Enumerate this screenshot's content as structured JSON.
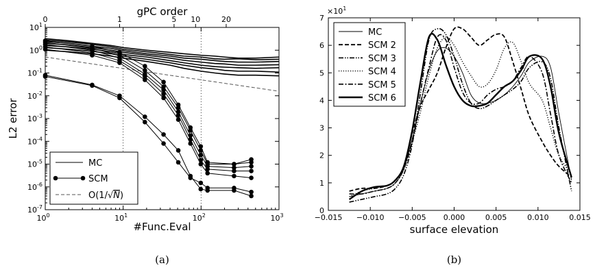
{
  "chart_data": [
    {
      "type": "line",
      "caption": "(a)",
      "xlabel": "#Func.Eval",
      "ylabel": "L2 error",
      "top_xlabel": "gPC order",
      "xscale": "log",
      "yscale": "log",
      "xlim": [
        1,
        1000
      ],
      "ylim": [
        1e-07,
        10
      ],
      "grid": "dotted verticals at 10 and 100",
      "xticks": [
        {
          "v": 1,
          "b": "10",
          "e": "0"
        },
        {
          "v": 10,
          "b": "10",
          "e": "1"
        },
        {
          "v": 100,
          "b": "10",
          "e": "2"
        },
        {
          "v": 1000,
          "b": "10",
          "e": "3"
        }
      ],
      "yticks": [
        {
          "v": 1e-07,
          "b": "10",
          "e": "-7"
        },
        {
          "v": 1e-06,
          "b": "10",
          "e": "-6"
        },
        {
          "v": 1e-05,
          "b": "10",
          "e": "-5"
        },
        {
          "v": 0.0001,
          "b": "10",
          "e": "-4"
        },
        {
          "v": 0.001,
          "b": "10",
          "e": "-3"
        },
        {
          "v": 0.01,
          "b": "10",
          "e": "-2"
        },
        {
          "v": 0.1,
          "b": "10",
          "e": "-1"
        },
        {
          "v": 1,
          "b": "10",
          "e": "0"
        },
        {
          "v": 10,
          "b": "10",
          "e": "1"
        }
      ],
      "top_ticks": [
        {
          "v": 1,
          "label": "0"
        },
        {
          "v": 9,
          "label": "1"
        },
        {
          "v": 45,
          "label": "5"
        },
        {
          "v": 85,
          "label": "10"
        },
        {
          "v": 210,
          "label": "20"
        }
      ],
      "legend": {
        "position": "lower-left",
        "items": [
          {
            "label": "MC",
            "style": "solid"
          },
          {
            "label": "SCM",
            "style": "solid-marker"
          },
          {
            "label_pre": "O(1/",
            "label_sqrt": "√",
            "label_n": "N",
            "label_post": ")",
            "style": "dashed"
          }
        ]
      },
      "x_scm": [
        1,
        4,
        9,
        19,
        33,
        51,
        73,
        99,
        121,
        265,
        441
      ],
      "scm_series": [
        [
          2.6,
          1.5,
          0.8,
          0.2,
          0.04,
          0.004,
          0.0004,
          6e-05,
          1.2e-05,
          1e-05,
          1.6e-05
        ],
        [
          2.2,
          1.2,
          0.6,
          0.13,
          0.025,
          0.003,
          0.0003,
          4e-05,
          1e-05,
          1e-05,
          1.2e-05
        ],
        [
          1.8,
          1.0,
          0.45,
          0.09,
          0.018,
          0.002,
          0.00018,
          2.5e-05,
          8e-06,
          7e-06,
          8e-06
        ],
        [
          1.4,
          0.75,
          0.35,
          0.07,
          0.012,
          0.0014,
          0.00012,
          1.5e-05,
          6e-06,
          5e-06,
          5e-06
        ],
        [
          1.1,
          0.6,
          0.28,
          0.05,
          0.008,
          0.0009,
          8e-05,
          1e-05,
          4e-06,
          3e-06,
          2.5e-06
        ],
        [
          0.08,
          0.03,
          0.01,
          0.0012,
          0.0002,
          4e-05,
          3e-06,
          8e-07,
          7e-07,
          7e-07,
          4e-07
        ],
        [
          0.07,
          0.028,
          0.008,
          0.0007,
          8e-05,
          1.2e-05,
          2.5e-06,
          1.5e-06,
          9e-07,
          9e-07,
          6e-07
        ]
      ],
      "mc_x": [
        1,
        2,
        4,
        7,
        10,
        20,
        40,
        60,
        100,
        150,
        200,
        300,
        500,
        1000
      ],
      "mc_series": [
        [
          3.2,
          2.6,
          2.0,
          1.6,
          1.3,
          1.0,
          0.8,
          0.7,
          0.6,
          0.55,
          0.5,
          0.45,
          0.45,
          0.5
        ],
        [
          2.8,
          2.3,
          1.8,
          1.4,
          1.1,
          0.85,
          0.65,
          0.55,
          0.5,
          0.42,
          0.4,
          0.42,
          0.38,
          0.4
        ],
        [
          2.4,
          2.0,
          1.5,
          1.2,
          0.95,
          0.7,
          0.55,
          0.45,
          0.4,
          0.35,
          0.32,
          0.3,
          0.3,
          0.32
        ],
        [
          2.0,
          1.7,
          1.3,
          1.0,
          0.8,
          0.6,
          0.45,
          0.36,
          0.3,
          0.26,
          0.25,
          0.22,
          0.22,
          0.23
        ],
        [
          1.6,
          1.4,
          1.1,
          0.85,
          0.65,
          0.5,
          0.35,
          0.28,
          0.22,
          0.19,
          0.18,
          0.17,
          0.16,
          0.17
        ],
        [
          1.3,
          1.1,
          0.9,
          0.7,
          0.55,
          0.4,
          0.28,
          0.22,
          0.17,
          0.15,
          0.13,
          0.12,
          0.12,
          0.11
        ],
        [
          1.0,
          0.85,
          0.7,
          0.55,
          0.45,
          0.32,
          0.22,
          0.16,
          0.12,
          0.1,
          0.09,
          0.08,
          0.08,
          0.075
        ]
      ],
      "ref_line": {
        "x": [
          1,
          1000
        ],
        "y": [
          0.5,
          0.0158
        ]
      }
    },
    {
      "type": "line",
      "caption": "(b)",
      "xlabel": "surface elevation",
      "ylabel": "",
      "y_multiplier": "×10",
      "y_multiplier_exp": "1",
      "xlim": [
        -0.015,
        0.015
      ],
      "ylim": [
        0,
        7
      ],
      "grid": false,
      "xticks": [
        {
          "v": -0.015,
          "label": "−0.015"
        },
        {
          "v": -0.01,
          "label": "−0.010"
        },
        {
          "v": -0.005,
          "label": "−0.005"
        },
        {
          "v": 0,
          "label": "0.000"
        },
        {
          "v": 0.005,
          "label": "0.005"
        },
        {
          "v": 0.01,
          "label": "0.010"
        },
        {
          "v": 0.015,
          "label": "0.015"
        }
      ],
      "yticks": [
        {
          "v": 0,
          "label": "0"
        },
        {
          "v": 1,
          "label": "1"
        },
        {
          "v": 2,
          "label": "2"
        },
        {
          "v": 3,
          "label": "3"
        },
        {
          "v": 4,
          "label": "4"
        },
        {
          "v": 5,
          "label": "5"
        },
        {
          "v": 6,
          "label": "6"
        },
        {
          "v": 7,
          "label": "7"
        }
      ],
      "legend": {
        "position": "top-left"
      },
      "series": [
        {
          "name": "MC",
          "style": "thin",
          "x": [
            -0.0125,
            -0.011,
            -0.0095,
            -0.008,
            -0.007,
            -0.006,
            -0.005,
            -0.004,
            -0.003,
            -0.002,
            -0.001,
            0.0,
            0.001,
            0.002,
            0.003,
            0.004,
            0.005,
            0.006,
            0.007,
            0.008,
            0.009,
            0.0105,
            0.0115,
            0.0125,
            0.014
          ],
          "y": [
            0.5,
            0.6,
            0.7,
            0.8,
            1.0,
            1.5,
            2.6,
            3.9,
            5.1,
            5.8,
            5.9,
            5.6,
            5.0,
            4.2,
            3.9,
            3.9,
            4.0,
            4.2,
            4.5,
            4.9,
            5.4,
            5.6,
            5.2,
            3.5,
            1.1
          ]
        },
        {
          "name": "SCM 2",
          "style": "dashed",
          "x": [
            -0.0125,
            -0.011,
            -0.0095,
            -0.008,
            -0.007,
            -0.006,
            -0.005,
            -0.004,
            -0.003,
            -0.002,
            -0.001,
            0.0,
            0.001,
            0.002,
            0.003,
            0.004,
            0.005,
            0.006,
            0.007,
            0.008,
            0.009,
            0.0105,
            0.0115,
            0.0125,
            0.014
          ],
          "y": [
            0.7,
            0.8,
            0.8,
            0.9,
            1.1,
            1.6,
            2.8,
            3.8,
            4.4,
            5.0,
            5.9,
            6.6,
            6.6,
            6.3,
            6.0,
            6.2,
            6.4,
            6.3,
            5.4,
            4.4,
            3.4,
            2.5,
            2.0,
            1.6,
            1.2
          ]
        },
        {
          "name": "SCM 3",
          "style": "dashdotdot",
          "x": [
            -0.0125,
            -0.011,
            -0.0095,
            -0.008,
            -0.007,
            -0.006,
            -0.005,
            -0.004,
            -0.003,
            -0.002,
            -0.001,
            0.0,
            0.001,
            0.002,
            0.003,
            0.004,
            0.005,
            0.006,
            0.007,
            0.008,
            0.009,
            0.0105,
            0.0115,
            0.0125,
            0.014
          ],
          "y": [
            0.3,
            0.4,
            0.5,
            0.6,
            0.8,
            1.3,
            2.4,
            4.3,
            6.2,
            6.6,
            6.4,
            5.6,
            4.6,
            3.9,
            3.7,
            3.8,
            4.0,
            4.2,
            4.4,
            4.7,
            5.2,
            5.4,
            4.8,
            3.0,
            0.7
          ]
        },
        {
          "name": "SCM 4",
          "style": "dotted",
          "x": [
            -0.0125,
            -0.011,
            -0.0095,
            -0.008,
            -0.007,
            -0.006,
            -0.005,
            -0.004,
            -0.003,
            -0.002,
            -0.001,
            0.0,
            0.001,
            0.002,
            0.003,
            0.004,
            0.005,
            0.006,
            0.007,
            0.008,
            0.009,
            0.0105,
            0.0115,
            0.0125,
            0.014
          ],
          "y": [
            0.5,
            0.7,
            0.8,
            0.9,
            1.1,
            1.6,
            2.5,
            3.6,
            4.9,
            5.9,
            6.3,
            6.0,
            5.4,
            4.9,
            4.5,
            4.6,
            5.1,
            5.9,
            6.1,
            5.4,
            4.6,
            4.0,
            3.0,
            2.0,
            1.3
          ]
        },
        {
          "name": "SCM 5",
          "style": "dashdot",
          "x": [
            -0.0125,
            -0.011,
            -0.0095,
            -0.008,
            -0.007,
            -0.006,
            -0.005,
            -0.004,
            -0.003,
            -0.002,
            -0.001,
            0.0,
            0.001,
            0.002,
            0.003,
            0.004,
            0.005,
            0.006,
            0.007,
            0.008,
            0.009,
            0.0105,
            0.0115,
            0.0125,
            0.014
          ],
          "y": [
            0.6,
            0.6,
            0.7,
            0.8,
            1.0,
            1.5,
            2.5,
            3.9,
            5.2,
            6.3,
            6.2,
            5.2,
            4.3,
            3.9,
            3.9,
            4.2,
            4.4,
            4.5,
            4.7,
            5.2,
            5.6,
            5.0,
            3.5,
            2.0,
            1.0
          ]
        },
        {
          "name": "SCM 6",
          "style": "thick",
          "x": [
            -0.0125,
            -0.011,
            -0.0095,
            -0.008,
            -0.007,
            -0.006,
            -0.005,
            -0.004,
            -0.003,
            -0.002,
            -0.001,
            0.0,
            0.001,
            0.002,
            0.003,
            0.004,
            0.005,
            0.006,
            0.007,
            0.008,
            0.009,
            0.0105,
            0.0115,
            0.0125,
            0.014
          ],
          "y": [
            0.4,
            0.7,
            0.85,
            0.9,
            1.1,
            1.6,
            2.9,
            4.7,
            6.3,
            6.2,
            5.3,
            4.5,
            4.0,
            3.8,
            3.8,
            3.9,
            4.2,
            4.5,
            4.7,
            5.1,
            5.6,
            5.5,
            4.5,
            2.8,
            1.2
          ]
        }
      ]
    }
  ]
}
